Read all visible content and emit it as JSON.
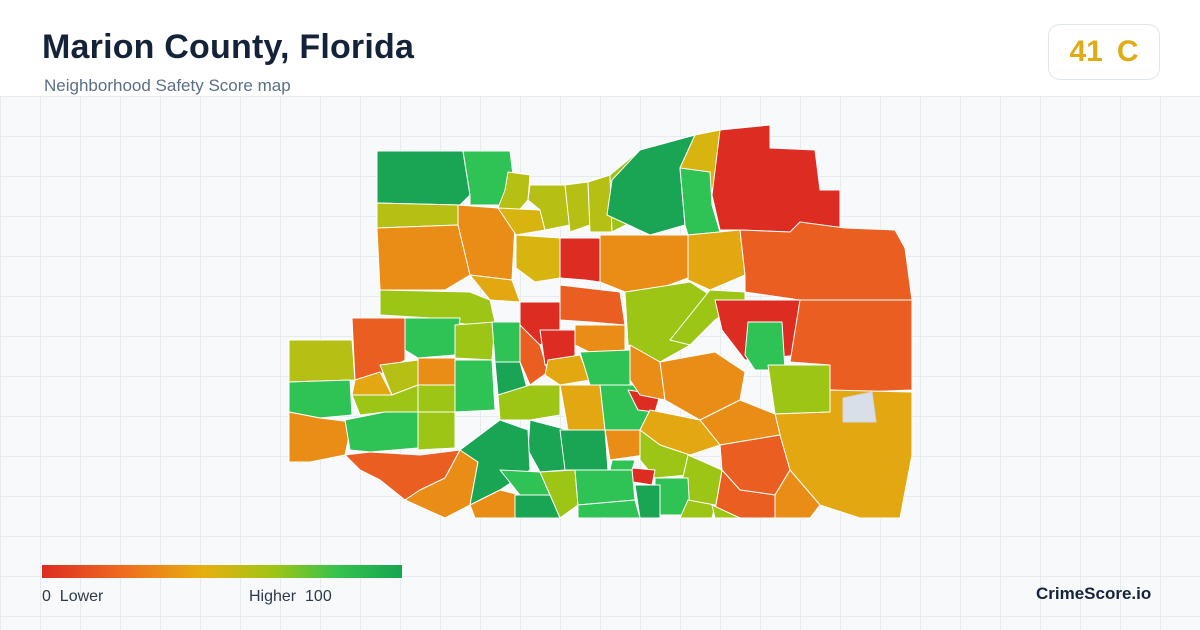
{
  "header": {
    "title": "Marion County, Florida",
    "subtitle": "Neighborhood Safety Score map",
    "score": "41",
    "grade": "C",
    "grade_color": "#e0ac16"
  },
  "legend": {
    "min_value": "0",
    "min_label": "Lower",
    "max_label": "Higher",
    "max_value": "100",
    "colors": [
      "#dd2c22",
      "#ef6a1f",
      "#e6b010",
      "#9cc516",
      "#35c24d",
      "#17a452"
    ]
  },
  "brand": "CrimeScore.io",
  "map": {
    "region": "Marion County, Florida",
    "no_data_color": "#d9dfe8"
  }
}
